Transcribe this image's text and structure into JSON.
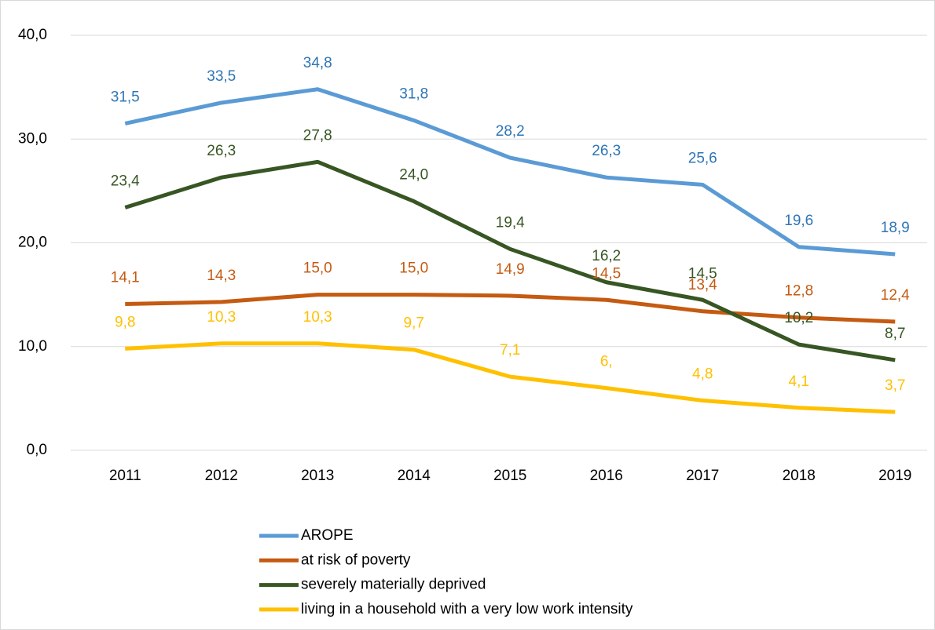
{
  "chart_data": {
    "type": "line",
    "categories": [
      "2011",
      "2012",
      "2013",
      "2014",
      "2015",
      "2016",
      "2017",
      "2018",
      "2019"
    ],
    "series": [
      {
        "name": "AROPE",
        "color": "#5b9bd5",
        "label_color": "#2e75b6",
        "values": [
          31.5,
          33.5,
          34.8,
          31.8,
          28.2,
          26.3,
          25.6,
          19.6,
          18.9
        ],
        "value_labels": [
          "31,5",
          "33,5",
          "34,8",
          "31,8",
          "28,2",
          "26,3",
          "25,6",
          "19,6",
          "18,9"
        ]
      },
      {
        "name": "at risk of poverty",
        "color": "#c55a11",
        "label_color": "#c55a11",
        "values": [
          14.1,
          14.3,
          15.0,
          15.0,
          14.9,
          14.5,
          13.4,
          12.8,
          12.4
        ],
        "value_labels": [
          "14,1",
          "14,3",
          "15,0",
          "15,0",
          "14,9",
          "14,5",
          "13,4",
          "12,8",
          "12,4"
        ]
      },
      {
        "name": "severely materially deprived",
        "color": "#375623",
        "label_color": "#375623",
        "values": [
          23.4,
          26.3,
          27.8,
          24.0,
          19.4,
          16.2,
          14.5,
          10.2,
          8.7
        ],
        "value_labels": [
          "23,4",
          "26,3",
          "27,8",
          "24,0",
          "19,4",
          "16,2",
          "14,5",
          "10,2",
          "8,7"
        ]
      },
      {
        "name": "living in a household with a very low work intensity",
        "color": "#ffc000",
        "label_color": "#ffc000",
        "values": [
          9.8,
          10.3,
          10.3,
          9.7,
          7.1,
          6.0,
          4.8,
          4.1,
          3.7
        ],
        "value_labels": [
          "9,8",
          "10,3",
          "10,3",
          "9,7",
          "7,1",
          "6,",
          "4,8",
          "4,1",
          "3,7"
        ]
      }
    ],
    "ylim": [
      0,
      40
    ],
    "yticks": [
      {
        "value": 0,
        "label": "0,0"
      },
      {
        "value": 10,
        "label": "10,0"
      },
      {
        "value": 20,
        "label": "20,0"
      },
      {
        "value": 30,
        "label": "30,0"
      },
      {
        "value": 40,
        "label": "40,0"
      }
    ],
    "grid": true,
    "legend": "bottom"
  }
}
